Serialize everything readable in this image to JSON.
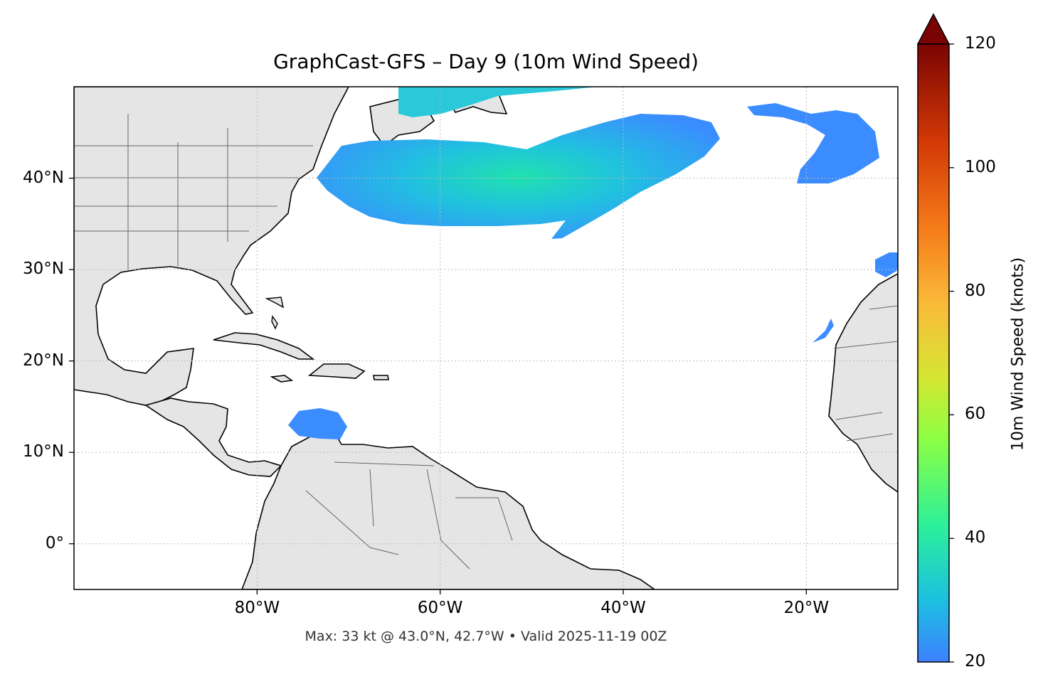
{
  "map": {
    "title": "GraphCast-GFS – Day 9 (10m Wind Speed)",
    "footer": "Max: 33 kt @ 43.0°N, 42.7°W • Valid 2025-11-19 00Z",
    "extent": {
      "lon": [
        -100,
        -10
      ],
      "lat": [
        -5,
        50
      ]
    },
    "x_ticks": [
      {
        "lon": -80,
        "label": "80°W"
      },
      {
        "lon": -60,
        "label": "60°W"
      },
      {
        "lon": -40,
        "label": "40°W"
      },
      {
        "lon": -20,
        "label": "20°W"
      }
    ],
    "y_ticks": [
      {
        "lat": 40,
        "label": "40°N"
      },
      {
        "lat": 30,
        "label": "30°N"
      },
      {
        "lat": 20,
        "label": "20°N"
      },
      {
        "lat": 10,
        "label": "10°N"
      },
      {
        "lat": 0,
        "label": "0°"
      }
    ],
    "colorbar": {
      "label": "10m Wind Speed (knots)",
      "range": [
        20,
        120
      ],
      "extend": "max",
      "ticks": [
        "20",
        "40",
        "60",
        "80",
        "100",
        "120"
      ]
    },
    "colors": {
      "land": "#e5e5e5",
      "ocean": "#ffffff",
      "coast": "#000000",
      "borders": "#666666",
      "grid": "#bbbbbb"
    }
  }
}
